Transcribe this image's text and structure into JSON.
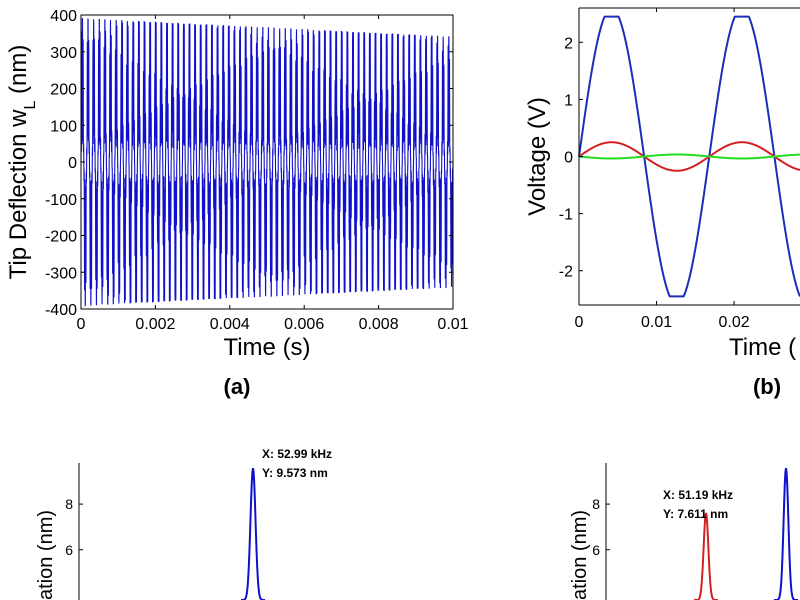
{
  "chart_data": [
    {
      "type": "line",
      "caption": "(a)",
      "xlabel": "Time (s)",
      "ylabel_main": "Tip Deflection w",
      "ylabel_sub": "L",
      "ylabel_unit": " (nm)",
      "xlim": [
        0,
        0.01
      ],
      "ylim": [
        -400,
        400
      ],
      "xticks": [
        0,
        0.002,
        0.004,
        0.006,
        0.008,
        0.01
      ],
      "xtick_labels": [
        "0",
        "0.002",
        "0.004",
        "0.006",
        "0.008",
        "0.01"
      ],
      "yticks": [
        -400,
        -300,
        -200,
        -100,
        0,
        100,
        200,
        300,
        400
      ],
      "ytick_labels": [
        "-400",
        "-300",
        "-200",
        "-100",
        "0",
        "100",
        "200",
        "300",
        "400"
      ],
      "series": [
        {
          "color": "#1111cc",
          "amplitude_start": 390,
          "amplitude_end": 340,
          "fundamental_hz": 6600,
          "modulation_hz": 53000,
          "modulation_fraction": 0.45
        }
      ]
    },
    {
      "type": "line",
      "caption": "(b)",
      "xlabel": "Time (",
      "ylabel": "Voltage (V)",
      "xlim": [
        0,
        0.0285
      ],
      "ylim": [
        -2.6,
        2.6
      ],
      "xticks": [
        0,
        0.01,
        0.02
      ],
      "xtick_labels": [
        "0",
        "0.01",
        "0.02"
      ],
      "yticks": [
        -2,
        -1,
        0,
        1,
        2
      ],
      "ytick_labels": [
        "-2",
        "-1",
        "0",
        "1",
        "2"
      ],
      "series": [
        {
          "color": "#1a2fb8",
          "amplitude": 2.45,
          "period": 0.0168,
          "phase": 0
        },
        {
          "color": "#d42020",
          "amplitude": 0.25,
          "period": 0.0168,
          "phase": 0
        },
        {
          "color": "#22dd22",
          "amplitude": 0.035,
          "period": 0.0168,
          "phase": 3.14
        }
      ]
    },
    {
      "type": "line",
      "ylabel": "ation (nm)",
      "yticks": [
        6,
        8
      ],
      "ytick_labels": [
        "6",
        "8"
      ],
      "ylim": [
        3.8,
        9.8
      ],
      "series": [
        {
          "color": "#1111cc",
          "peak_x_khz": 52.99,
          "peak_y_nm": 9.573
        }
      ],
      "annotations": [
        {
          "color": "#1111cc",
          "line1": "X: 52.99 kHz",
          "line2": "Y: 9.573 nm"
        }
      ]
    },
    {
      "type": "line",
      "ylabel": "ation (nm)",
      "yticks": [
        6,
        8
      ],
      "ytick_labels": [
        "6",
        "8"
      ],
      "ylim": [
        3.8,
        9.8
      ],
      "series": [
        {
          "color": "#d42020",
          "peak_x_khz": 51.19,
          "peak_y_nm": 7.611
        },
        {
          "color": "#1111cc",
          "peak_y_nm": 9.573
        }
      ],
      "annotations": [
        {
          "color": "#d42020",
          "line1": "X: 51.19 kHz",
          "line2": "Y: 7.611 nm"
        }
      ]
    }
  ]
}
